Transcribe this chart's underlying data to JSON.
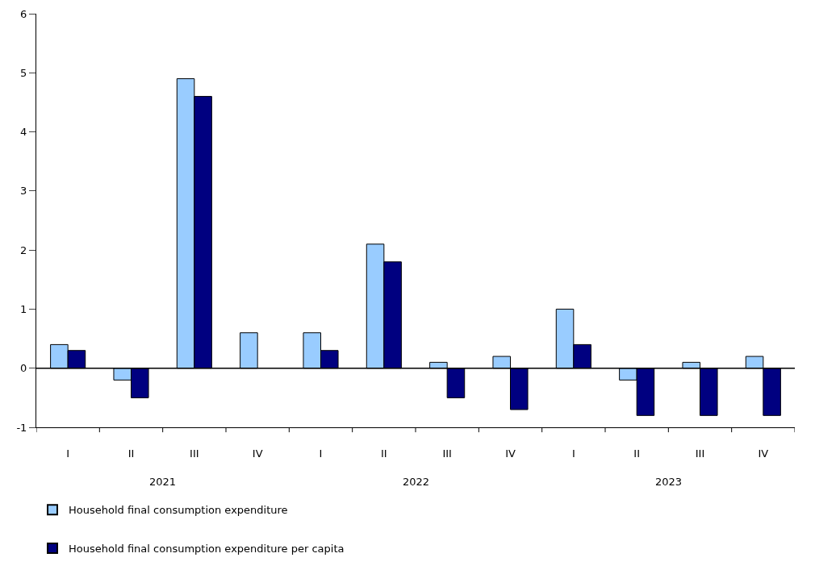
{
  "chart_data": {
    "type": "bar",
    "categories": [
      "I",
      "II",
      "III",
      "IV",
      "I",
      "II",
      "III",
      "IV",
      "I",
      "II",
      "III",
      "IV"
    ],
    "series": [
      {
        "name": "Household final consumption expenditure",
        "color": "#99ccff",
        "values": [
          0.4,
          -0.2,
          4.9,
          0.6,
          0.6,
          2.1,
          0.1,
          0.2,
          1.0,
          -0.2,
          0.1,
          0.2
        ]
      },
      {
        "name": "Household final consumption expenditure per capita",
        "color": "#000080",
        "values": [
          0.3,
          -0.5,
          4.6,
          null,
          0.3,
          1.8,
          -0.5,
          -0.7,
          0.4,
          -0.8,
          -0.8,
          -0.8
        ]
      }
    ],
    "annotations": [
      "2021",
      "2022",
      "2023"
    ],
    "ylim": [
      -1,
      6
    ],
    "yticks": [
      -1,
      0,
      1,
      2,
      3,
      4,
      5,
      6
    ],
    "ref_lines": [
      {
        "axis": "y",
        "value": 0,
        "color": "#000000"
      }
    ],
    "legend": "bottom"
  }
}
